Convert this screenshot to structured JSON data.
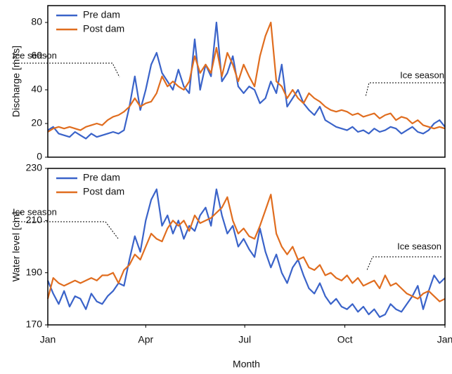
{
  "chart_data": [
    {
      "type": "line",
      "ylabel": "Discharge [m³/s]",
      "x": [
        0,
        5,
        10,
        15,
        20,
        25,
        30,
        35,
        40,
        45,
        50,
        55,
        60,
        65,
        70,
        75,
        80,
        85,
        90,
        95,
        100,
        105,
        110,
        115,
        120,
        125,
        130,
        135,
        140,
        145,
        150,
        155,
        160,
        165,
        170,
        175,
        180,
        185,
        190,
        195,
        200,
        205,
        210,
        215,
        220,
        225,
        230,
        235,
        240,
        245,
        250,
        255,
        260,
        265,
        270,
        275,
        280,
        285,
        290,
        295,
        300,
        305,
        310,
        315,
        320,
        325,
        330,
        335,
        340,
        345,
        350,
        355,
        360,
        365
      ],
      "xlim": [
        0,
        365
      ],
      "ylim": [
        0,
        90
      ],
      "yticks": [
        0,
        20,
        40,
        60,
        80
      ],
      "annotations": [
        "Ice season",
        "Ice season"
      ],
      "series": [
        {
          "name": "Pre dam",
          "color": "#3a63c9",
          "values": [
            16,
            18,
            14,
            13,
            12,
            15,
            13,
            11,
            14,
            12,
            13,
            14,
            15,
            14,
            16,
            30,
            48,
            28,
            40,
            55,
            62,
            50,
            45,
            40,
            52,
            42,
            38,
            70,
            40,
            55,
            48,
            80,
            45,
            50,
            60,
            42,
            38,
            42,
            40,
            32,
            35,
            45,
            38,
            55,
            30,
            35,
            40,
            32,
            28,
            25,
            30,
            22,
            20,
            18,
            17,
            16,
            18,
            15,
            16,
            14,
            17,
            15,
            16,
            18,
            17,
            14,
            16,
            18,
            15,
            14,
            16,
            20,
            22,
            18
          ]
        },
        {
          "name": "Post dam",
          "color": "#e06d1f",
          "values": [
            15,
            17,
            18,
            17,
            18,
            17,
            16,
            18,
            19,
            20,
            19,
            22,
            24,
            25,
            27,
            30,
            35,
            30,
            32,
            33,
            38,
            48,
            42,
            45,
            42,
            40,
            45,
            60,
            50,
            55,
            50,
            65,
            48,
            62,
            55,
            45,
            55,
            48,
            42,
            60,
            72,
            80,
            45,
            42,
            35,
            40,
            35,
            32,
            38,
            35,
            33,
            30,
            28,
            27,
            28,
            27,
            25,
            26,
            24,
            25,
            26,
            23,
            25,
            26,
            22,
            24,
            23,
            20,
            22,
            19,
            18,
            17,
            18,
            17
          ]
        }
      ]
    },
    {
      "type": "line",
      "ylabel": "Water level [cm]",
      "xlabel": "Month",
      "x": [
        0,
        5,
        10,
        15,
        20,
        25,
        30,
        35,
        40,
        45,
        50,
        55,
        60,
        65,
        70,
        75,
        80,
        85,
        90,
        95,
        100,
        105,
        110,
        115,
        120,
        125,
        130,
        135,
        140,
        145,
        150,
        155,
        160,
        165,
        170,
        175,
        180,
        185,
        190,
        195,
        200,
        205,
        210,
        215,
        220,
        225,
        230,
        235,
        240,
        245,
        250,
        255,
        260,
        265,
        270,
        275,
        280,
        285,
        290,
        295,
        300,
        305,
        310,
        315,
        320,
        325,
        330,
        335,
        340,
        345,
        350,
        355,
        360,
        365
      ],
      "xlim": [
        0,
        365
      ],
      "xticks": [
        {
          "value": 0,
          "label": "Jan"
        },
        {
          "value": 90,
          "label": "Apr"
        },
        {
          "value": 181,
          "label": "Jul"
        },
        {
          "value": 273,
          "label": "Oct"
        },
        {
          "value": 365,
          "label": "Jan"
        }
      ],
      "ylim": [
        170,
        230
      ],
      "yticks": [
        170,
        190,
        210,
        230
      ],
      "annotations": [
        "Ice season",
        "Ice season"
      ],
      "series": [
        {
          "name": "Pre dam",
          "color": "#3a63c9",
          "values": [
            187,
            182,
            178,
            183,
            177,
            181,
            180,
            176,
            182,
            179,
            178,
            181,
            183,
            186,
            185,
            195,
            204,
            198,
            210,
            218,
            222,
            208,
            212,
            205,
            210,
            203,
            208,
            206,
            212,
            215,
            208,
            222,
            212,
            205,
            208,
            200,
            203,
            199,
            196,
            207,
            198,
            192,
            197,
            190,
            186,
            192,
            195,
            189,
            184,
            182,
            186,
            181,
            178,
            180,
            177,
            176,
            178,
            175,
            177,
            174,
            176,
            173,
            174,
            178,
            176,
            175,
            178,
            181,
            185,
            176,
            183,
            189,
            186,
            188
          ]
        },
        {
          "name": "Post dam",
          "color": "#e06d1f",
          "values": [
            180,
            188,
            186,
            185,
            186,
            187,
            186,
            187,
            188,
            187,
            189,
            189,
            190,
            186,
            191,
            193,
            197,
            195,
            200,
            205,
            203,
            202,
            207,
            210,
            208,
            210,
            206,
            212,
            209,
            210,
            211,
            213,
            215,
            219,
            210,
            205,
            207,
            204,
            203,
            208,
            214,
            220,
            205,
            200,
            197,
            200,
            195,
            196,
            192,
            191,
            193,
            189,
            190,
            188,
            187,
            189,
            186,
            188,
            185,
            186,
            187,
            184,
            189,
            185,
            186,
            184,
            182,
            181,
            180,
            182,
            183,
            181,
            179,
            180
          ]
        }
      ]
    }
  ]
}
